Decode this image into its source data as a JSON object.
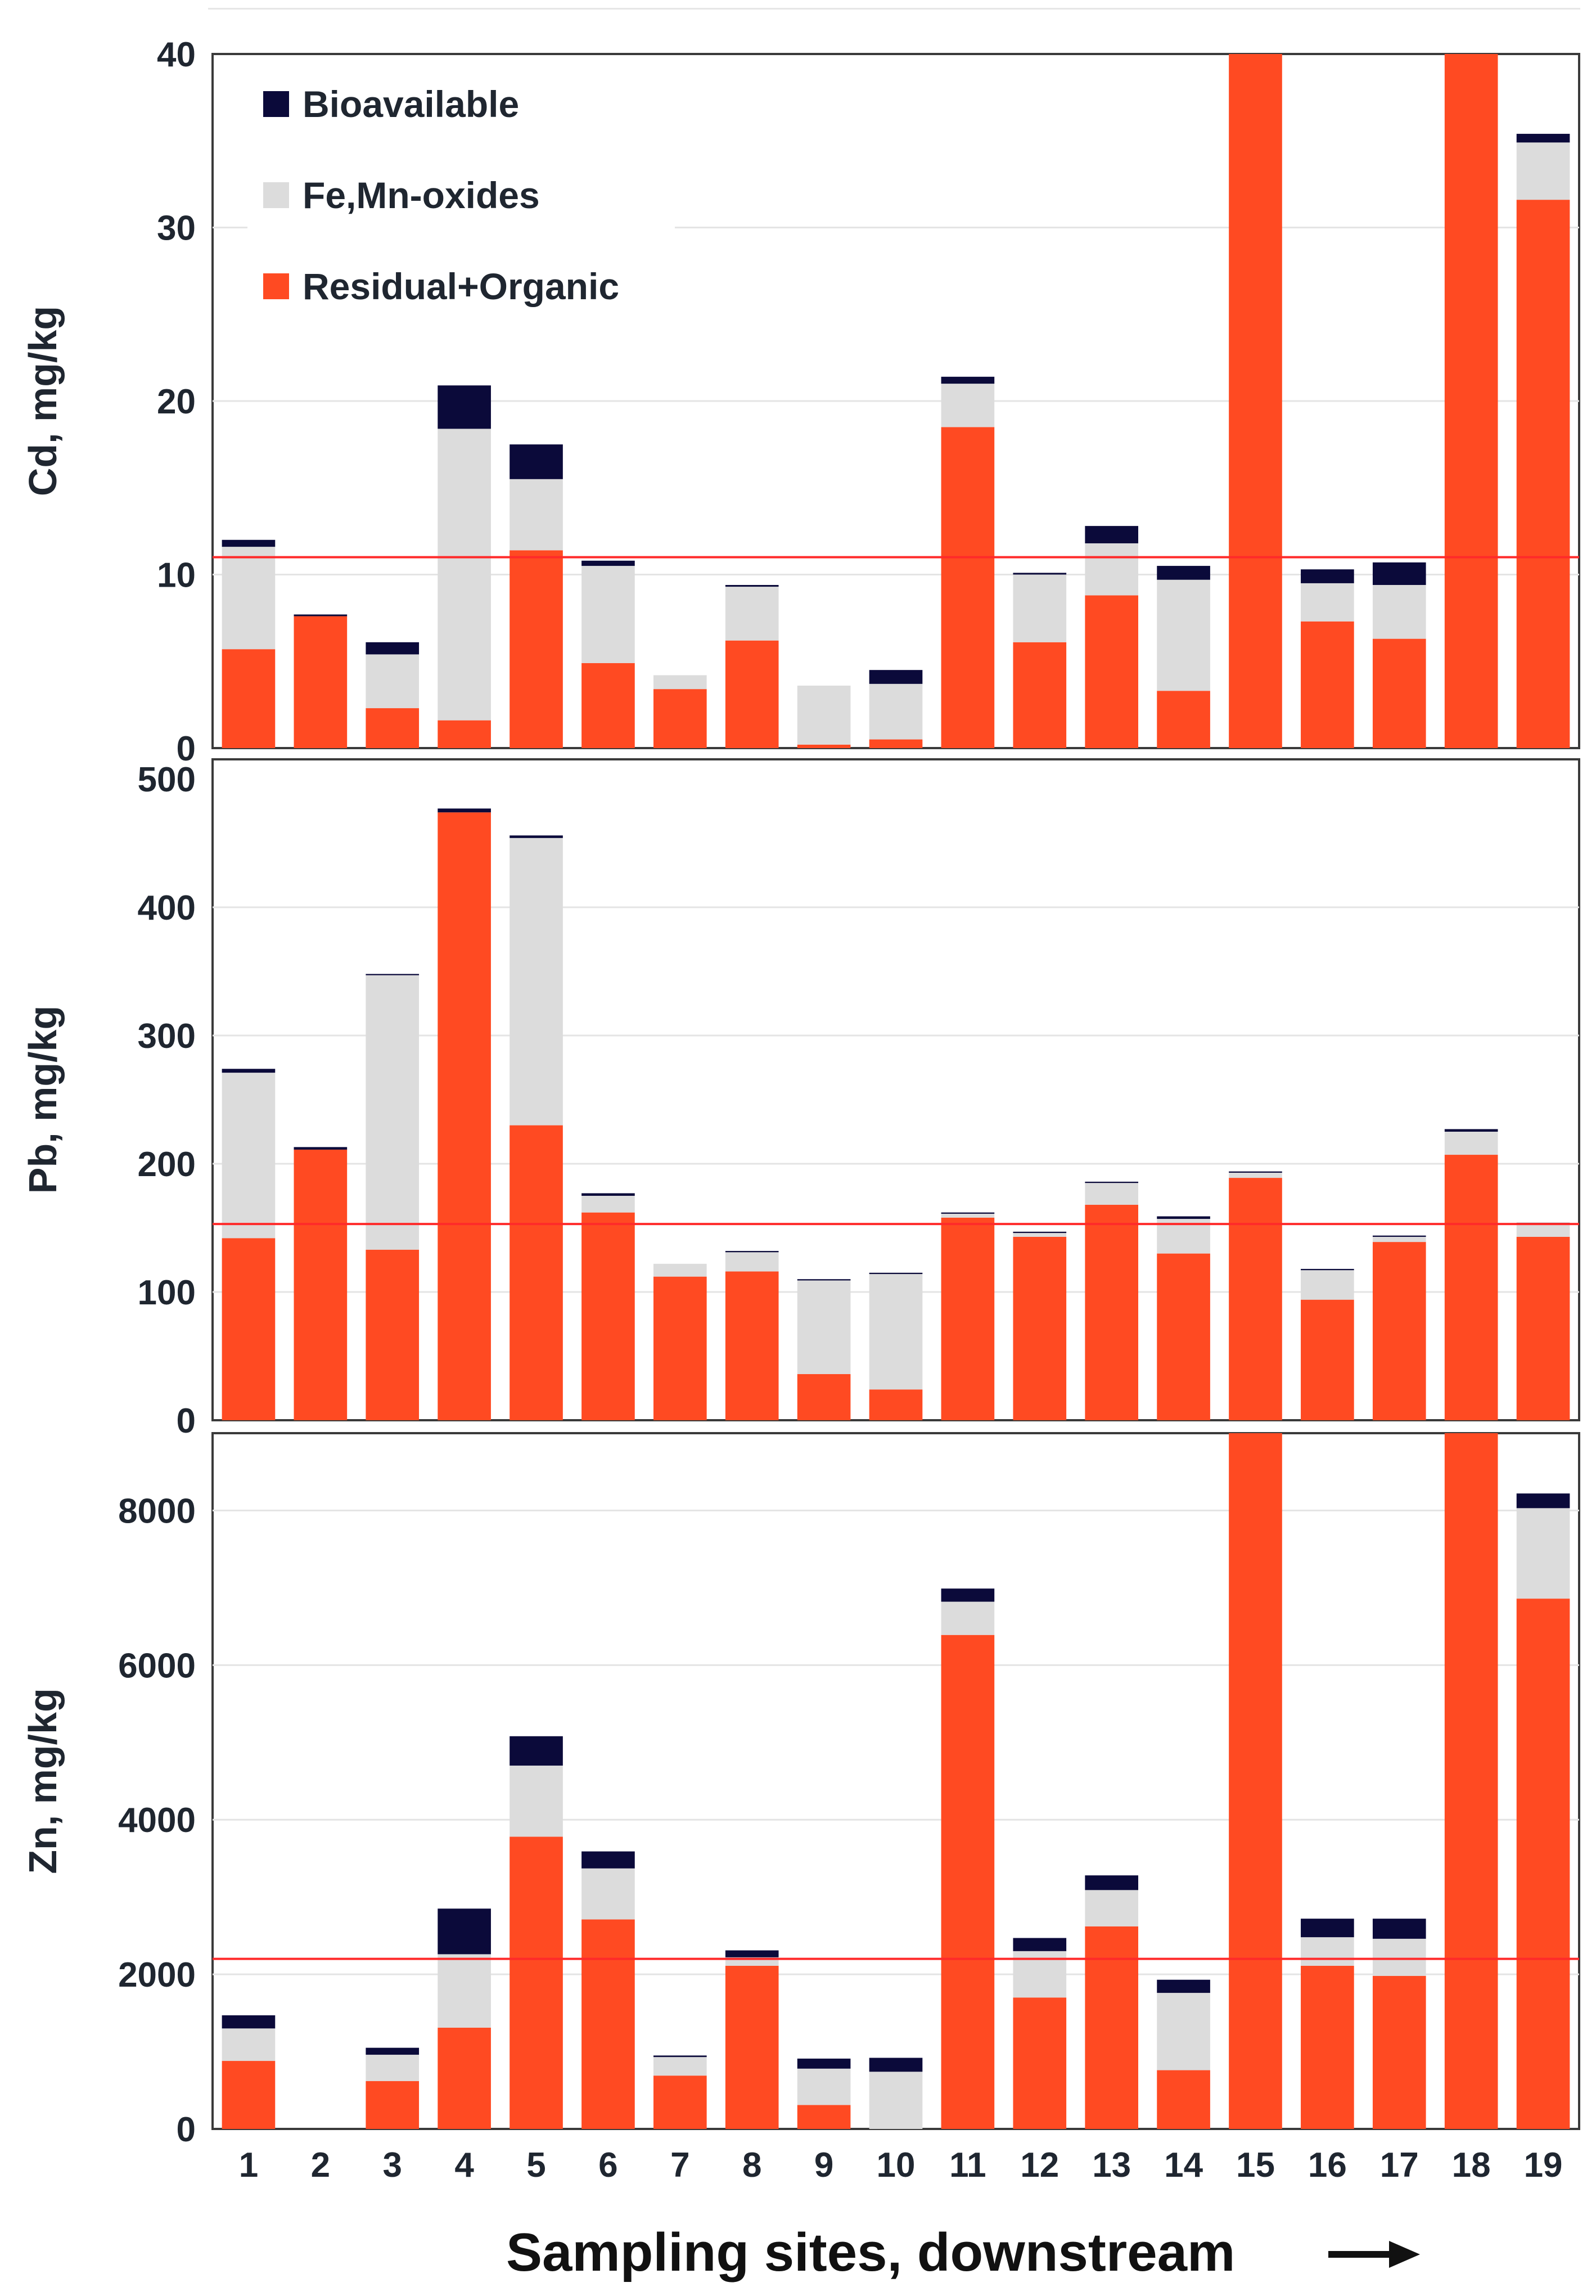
{
  "colors": {
    "bioavailable": "#0b0a3a",
    "fe_mn_oxides": "#dcdcdc",
    "residual_organic": "#ff4a22",
    "threshold": "#ff2a2a",
    "grid": "#e4e4e4"
  },
  "x_axis": {
    "title": "Sampling sites, downstream",
    "arrow_icon": "right-arrow-icon"
  },
  "legend": {
    "items": [
      {
        "label": "Bioavailable",
        "key": "bioavailable"
      },
      {
        "label": "Fe,Mn-oxides",
        "key": "fe_mn_oxides"
      },
      {
        "label": "Residual+Organic",
        "key": "residual_organic"
      }
    ]
  },
  "chart_data": [
    {
      "type": "bar",
      "stacked": true,
      "ylabel": "Cd, mg/kg",
      "ylim": [
        0,
        40
      ],
      "yticks": [
        "0",
        "10",
        "20",
        "30",
        "40"
      ],
      "threshold": 11,
      "categories": [
        "1",
        "2",
        "3",
        "4",
        "5",
        "6",
        "7",
        "8",
        "9",
        "10",
        "11",
        "12",
        "13",
        "14",
        "15",
        "16",
        "17",
        "18",
        "19"
      ],
      "series": [
        {
          "name": "Residual+Organic",
          "values": [
            5.7,
            7.6,
            2.3,
            1.6,
            11.4,
            4.9,
            3.4,
            6.2,
            0.2,
            0.5,
            18.5,
            6.1,
            8.8,
            3.3,
            40,
            7.3,
            6.3,
            40,
            31.6
          ]
        },
        {
          "name": "Fe,Mn-oxides",
          "values": [
            5.9,
            0.0,
            3.1,
            16.8,
            4.1,
            5.6,
            0.8,
            3.1,
            3.4,
            3.2,
            2.5,
            3.9,
            3.0,
            6.4,
            0,
            2.2,
            3.1,
            0,
            3.3
          ]
        },
        {
          "name": "Bioavailable",
          "values": [
            0.4,
            0.1,
            0.7,
            2.5,
            2.0,
            0.3,
            0.0,
            0.1,
            0.0,
            0.8,
            0.4,
            0.1,
            1.0,
            0.8,
            0,
            0.8,
            1.3,
            0,
            0.5
          ]
        }
      ]
    },
    {
      "type": "bar",
      "stacked": true,
      "ylabel": "Pb, mg/kg",
      "ylim": [
        0,
        500
      ],
      "yticks": [
        "0",
        "100",
        "200",
        "300",
        "400",
        "500"
      ],
      "threshold": 153,
      "categories": [
        "1",
        "2",
        "3",
        "4",
        "5",
        "6",
        "7",
        "8",
        "9",
        "10",
        "11",
        "12",
        "13",
        "14",
        "15",
        "16",
        "17",
        "18",
        "19"
      ],
      "series": [
        {
          "name": "Residual+Organic",
          "values": [
            142,
            211,
            133,
            474,
            230,
            162,
            112,
            116,
            36,
            24,
            158,
            143,
            168,
            130,
            189,
            94,
            139,
            207,
            143
          ]
        },
        {
          "name": "Fe,Mn-oxides",
          "values": [
            129,
            0,
            214,
            0,
            224,
            13,
            10,
            15,
            73,
            90,
            3,
            3,
            17,
            27,
            4,
            23,
            4,
            18,
            10
          ]
        },
        {
          "name": "Bioavailable",
          "values": [
            3,
            2,
            1,
            3,
            2,
            2,
            0,
            1,
            1,
            1,
            1,
            1,
            1,
            2,
            1,
            1,
            1,
            2,
            1
          ]
        }
      ]
    },
    {
      "type": "bar",
      "stacked": true,
      "ylabel": "Zn, mg/kg",
      "ylim": [
        0,
        9000
      ],
      "yticks": [
        "0",
        "2000",
        "4000",
        "6000",
        "8000"
      ],
      "threshold": 2200,
      "categories": [
        "1",
        "2",
        "3",
        "4",
        "5",
        "6",
        "7",
        "8",
        "9",
        "10",
        "11",
        "12",
        "13",
        "14",
        "15",
        "16",
        "17",
        "18",
        "19"
      ],
      "series": [
        {
          "name": "Residual+Organic",
          "values": [
            880,
            0,
            620,
            1310,
            3780,
            2710,
            690,
            2110,
            310,
            0,
            6390,
            1700,
            2620,
            760,
            9000,
            2110,
            1980,
            9000,
            6860
          ]
        },
        {
          "name": "Fe,Mn-oxides",
          "values": [
            420,
            0,
            340,
            950,
            920,
            660,
            240,
            110,
            470,
            740,
            430,
            600,
            470,
            1000,
            0,
            370,
            480,
            0,
            1170
          ]
        },
        {
          "name": "Bioavailable",
          "values": [
            170,
            0,
            90,
            590,
            380,
            220,
            20,
            90,
            130,
            180,
            170,
            170,
            190,
            170,
            0,
            240,
            260,
            0,
            190
          ]
        }
      ]
    }
  ]
}
